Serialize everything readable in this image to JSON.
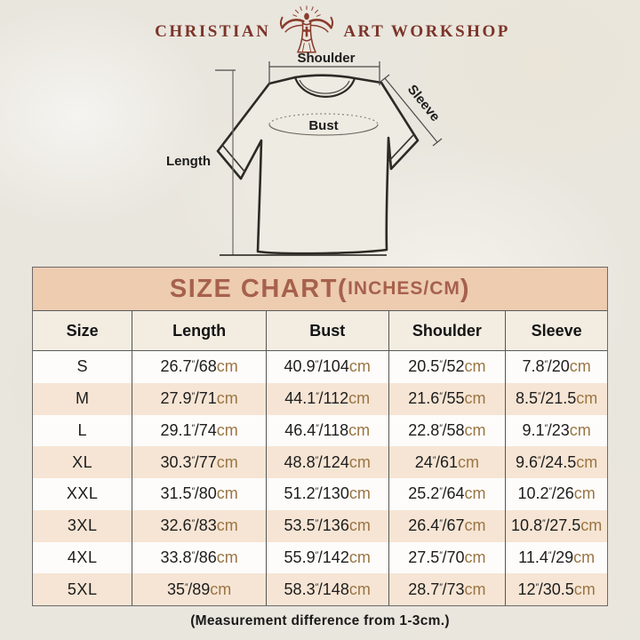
{
  "brand": {
    "name_left": "CHRISTIAN",
    "name_right": "ART WORKSHOP",
    "logo_icon": "jesus-rays-cross-icon",
    "color": "#7c3429"
  },
  "diagram": {
    "labels": {
      "shoulder": "Shoulder",
      "sleeve": "Sleeve",
      "bust": "Bust",
      "length": "Length"
    }
  },
  "size_chart": {
    "title": "SIZE CHART",
    "paren_open": "(",
    "units_label": "INCHES/CM",
    "paren_close": ")",
    "columns": [
      "Size",
      "Length",
      "Bust",
      "Shoulder",
      "Sleeve"
    ],
    "units": {
      "inch_mark": "″",
      "cm_label": "cm"
    },
    "rows": [
      {
        "size": "S",
        "length": {
          "in": "26.7",
          "cm": "68"
        },
        "bust": {
          "in": "40.9",
          "cm": "104"
        },
        "shoulder": {
          "in": "20.5",
          "cm": "52"
        },
        "sleeve": {
          "in": "7.8",
          "cm": "20"
        }
      },
      {
        "size": "M",
        "length": {
          "in": "27.9",
          "cm": "71"
        },
        "bust": {
          "in": "44.1",
          "cm": "112"
        },
        "shoulder": {
          "in": "21.6",
          "cm": "55"
        },
        "sleeve": {
          "in": "8.5",
          "cm": "21.5"
        }
      },
      {
        "size": "L",
        "length": {
          "in": "29.1",
          "cm": "74"
        },
        "bust": {
          "in": "46.4",
          "cm": "118"
        },
        "shoulder": {
          "in": "22.8",
          "cm": "58"
        },
        "sleeve": {
          "in": "9.1",
          "cm": "23"
        }
      },
      {
        "size": "XL",
        "length": {
          "in": "30.3",
          "cm": "77"
        },
        "bust": {
          "in": "48.8",
          "cm": "124"
        },
        "shoulder": {
          "in": "24",
          "cm": "61"
        },
        "sleeve": {
          "in": "9.6",
          "cm": "24.5"
        }
      },
      {
        "size": "XXL",
        "length": {
          "in": "31.5",
          "cm": "80"
        },
        "bust": {
          "in": "51.2",
          "cm": "130"
        },
        "shoulder": {
          "in": "25.2",
          "cm": "64"
        },
        "sleeve": {
          "in": "10.2",
          "cm": "26"
        }
      },
      {
        "size": "3XL",
        "length": {
          "in": "32.6",
          "cm": "83"
        },
        "bust": {
          "in": "53.5",
          "cm": "136"
        },
        "shoulder": {
          "in": "26.4",
          "cm": "67"
        },
        "sleeve": {
          "in": "10.8",
          "cm": "27.5"
        }
      },
      {
        "size": "4XL",
        "length": {
          "in": "33.8",
          "cm": "86"
        },
        "bust": {
          "in": "55.9",
          "cm": "142"
        },
        "shoulder": {
          "in": "27.5",
          "cm": "70"
        },
        "sleeve": {
          "in": "11.4",
          "cm": "29"
        }
      },
      {
        "size": "5XL",
        "length": {
          "in": "35",
          "cm": "89"
        },
        "bust": {
          "in": "58.3",
          "cm": "148"
        },
        "shoulder": {
          "in": "28.7",
          "cm": "73"
        },
        "sleeve": {
          "in": "12",
          "cm": "30.5"
        }
      }
    ],
    "colors": {
      "title_band_bg": "#edccb0",
      "title_text": "#a6614c",
      "header_row_bg": "#f2ece1",
      "row_white": "#fdfcfa",
      "row_peach": "#f6e5d4",
      "cm_text": "#9a7544",
      "border": "#5a5a5a"
    }
  },
  "footer_note": "(Measurement difference from 1-3cm.)"
}
